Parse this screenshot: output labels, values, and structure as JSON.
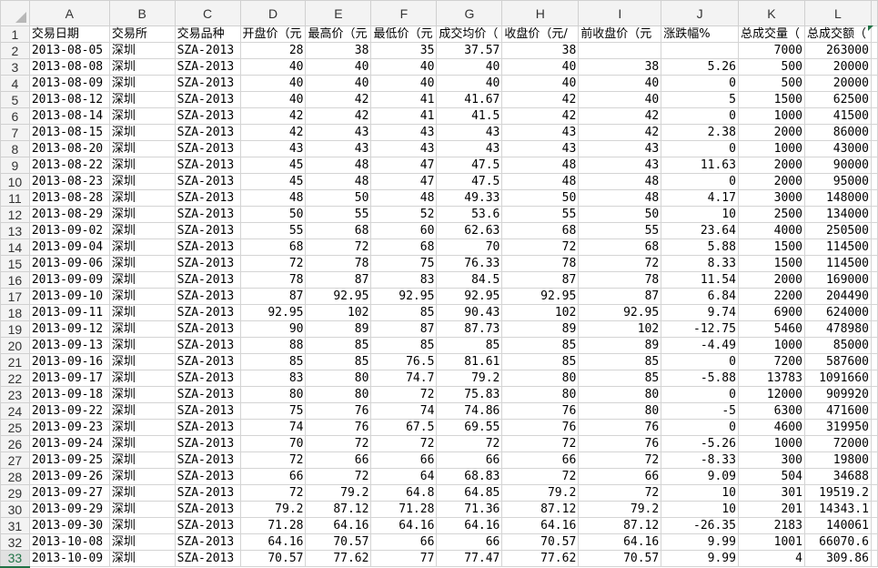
{
  "columns": [
    "A",
    "B",
    "C",
    "D",
    "E",
    "F",
    "G",
    "H",
    "I",
    "J",
    "K",
    "L"
  ],
  "headers": [
    "交易日期",
    "交易所",
    "交易品种",
    "开盘价（元",
    "最高价（元",
    "最低价（元",
    "成交均价（",
    "收盘价（元/",
    "前收盘价（元",
    "涨跌幅%",
    "总成交量（",
    "总成交额（"
  ],
  "selected_row": 33,
  "rows": [
    [
      "2013-08-05",
      "深圳",
      "SZA-2013",
      "28",
      "38",
      "35",
      "37.57",
      "38",
      "",
      "",
      "7000",
      "263000"
    ],
    [
      "2013-08-08",
      "深圳",
      "SZA-2013",
      "40",
      "40",
      "40",
      "40",
      "40",
      "38",
      "5.26",
      "500",
      "20000"
    ],
    [
      "2013-08-09",
      "深圳",
      "SZA-2013",
      "40",
      "40",
      "40",
      "40",
      "40",
      "40",
      "0",
      "500",
      "20000"
    ],
    [
      "2013-08-12",
      "深圳",
      "SZA-2013",
      "40",
      "42",
      "41",
      "41.67",
      "42",
      "40",
      "5",
      "1500",
      "62500"
    ],
    [
      "2013-08-14",
      "深圳",
      "SZA-2013",
      "42",
      "42",
      "41",
      "41.5",
      "42",
      "42",
      "0",
      "1000",
      "41500"
    ],
    [
      "2013-08-15",
      "深圳",
      "SZA-2013",
      "42",
      "43",
      "43",
      "43",
      "43",
      "42",
      "2.38",
      "2000",
      "86000"
    ],
    [
      "2013-08-20",
      "深圳",
      "SZA-2013",
      "43",
      "43",
      "43",
      "43",
      "43",
      "43",
      "0",
      "1000",
      "43000"
    ],
    [
      "2013-08-22",
      "深圳",
      "SZA-2013",
      "45",
      "48",
      "47",
      "47.5",
      "48",
      "43",
      "11.63",
      "2000",
      "90000"
    ],
    [
      "2013-08-23",
      "深圳",
      "SZA-2013",
      "45",
      "48",
      "47",
      "47.5",
      "48",
      "48",
      "0",
      "2000",
      "95000"
    ],
    [
      "2013-08-28",
      "深圳",
      "SZA-2013",
      "48",
      "50",
      "48",
      "49.33",
      "50",
      "48",
      "4.17",
      "3000",
      "148000"
    ],
    [
      "2013-08-29",
      "深圳",
      "SZA-2013",
      "50",
      "55",
      "52",
      "53.6",
      "55",
      "50",
      "10",
      "2500",
      "134000"
    ],
    [
      "2013-09-02",
      "深圳",
      "SZA-2013",
      "55",
      "68",
      "60",
      "62.63",
      "68",
      "55",
      "23.64",
      "4000",
      "250500"
    ],
    [
      "2013-09-04",
      "深圳",
      "SZA-2013",
      "68",
      "72",
      "68",
      "70",
      "72",
      "68",
      "5.88",
      "1500",
      "114500"
    ],
    [
      "2013-09-06",
      "深圳",
      "SZA-2013",
      "72",
      "78",
      "75",
      "76.33",
      "78",
      "72",
      "8.33",
      "1500",
      "114500"
    ],
    [
      "2013-09-09",
      "深圳",
      "SZA-2013",
      "78",
      "87",
      "83",
      "84.5",
      "87",
      "78",
      "11.54",
      "2000",
      "169000"
    ],
    [
      "2013-09-10",
      "深圳",
      "SZA-2013",
      "87",
      "92.95",
      "92.95",
      "92.95",
      "92.95",
      "87",
      "6.84",
      "2200",
      "204490"
    ],
    [
      "2013-09-11",
      "深圳",
      "SZA-2013",
      "92.95",
      "102",
      "85",
      "90.43",
      "102",
      "92.95",
      "9.74",
      "6900",
      "624000"
    ],
    [
      "2013-09-12",
      "深圳",
      "SZA-2013",
      "90",
      "89",
      "87",
      "87.73",
      "89",
      "102",
      "-12.75",
      "5460",
      "478980"
    ],
    [
      "2013-09-13",
      "深圳",
      "SZA-2013",
      "88",
      "85",
      "85",
      "85",
      "85",
      "89",
      "-4.49",
      "1000",
      "85000"
    ],
    [
      "2013-09-16",
      "深圳",
      "SZA-2013",
      "85",
      "85",
      "76.5",
      "81.61",
      "85",
      "85",
      "0",
      "7200",
      "587600"
    ],
    [
      "2013-09-17",
      "深圳",
      "SZA-2013",
      "83",
      "80",
      "74.7",
      "79.2",
      "80",
      "85",
      "-5.88",
      "13783",
      "1091660"
    ],
    [
      "2013-09-18",
      "深圳",
      "SZA-2013",
      "80",
      "80",
      "72",
      "75.83",
      "80",
      "80",
      "0",
      "12000",
      "909920"
    ],
    [
      "2013-09-22",
      "深圳",
      "SZA-2013",
      "75",
      "76",
      "74",
      "74.86",
      "76",
      "80",
      "-5",
      "6300",
      "471600"
    ],
    [
      "2013-09-23",
      "深圳",
      "SZA-2013",
      "74",
      "76",
      "67.5",
      "69.55",
      "76",
      "76",
      "0",
      "4600",
      "319950"
    ],
    [
      "2013-09-24",
      "深圳",
      "SZA-2013",
      "70",
      "72",
      "72",
      "72",
      "72",
      "76",
      "-5.26",
      "1000",
      "72000"
    ],
    [
      "2013-09-25",
      "深圳",
      "SZA-2013",
      "72",
      "66",
      "66",
      "66",
      "66",
      "72",
      "-8.33",
      "300",
      "19800"
    ],
    [
      "2013-09-26",
      "深圳",
      "SZA-2013",
      "66",
      "72",
      "64",
      "68.83",
      "72",
      "66",
      "9.09",
      "504",
      "34688"
    ],
    [
      "2013-09-27",
      "深圳",
      "SZA-2013",
      "72",
      "79.2",
      "64.8",
      "64.85",
      "79.2",
      "72",
      "10",
      "301",
      "19519.2"
    ],
    [
      "2013-09-29",
      "深圳",
      "SZA-2013",
      "79.2",
      "87.12",
      "71.28",
      "71.36",
      "87.12",
      "79.2",
      "10",
      "201",
      "14343.1"
    ],
    [
      "2013-09-30",
      "深圳",
      "SZA-2013",
      "71.28",
      "64.16",
      "64.16",
      "64.16",
      "64.16",
      "87.12",
      "-26.35",
      "2183",
      "140061"
    ],
    [
      "2013-10-08",
      "深圳",
      "SZA-2013",
      "64.16",
      "70.57",
      "66",
      "66",
      "70.57",
      "64.16",
      "9.99",
      "1001",
      "66070.6"
    ],
    [
      "2013-10-09",
      "深圳",
      "SZA-2013",
      "70.57",
      "77.62",
      "77",
      "77.47",
      "77.62",
      "70.57",
      "9.99",
      "4",
      "309.86"
    ]
  ]
}
